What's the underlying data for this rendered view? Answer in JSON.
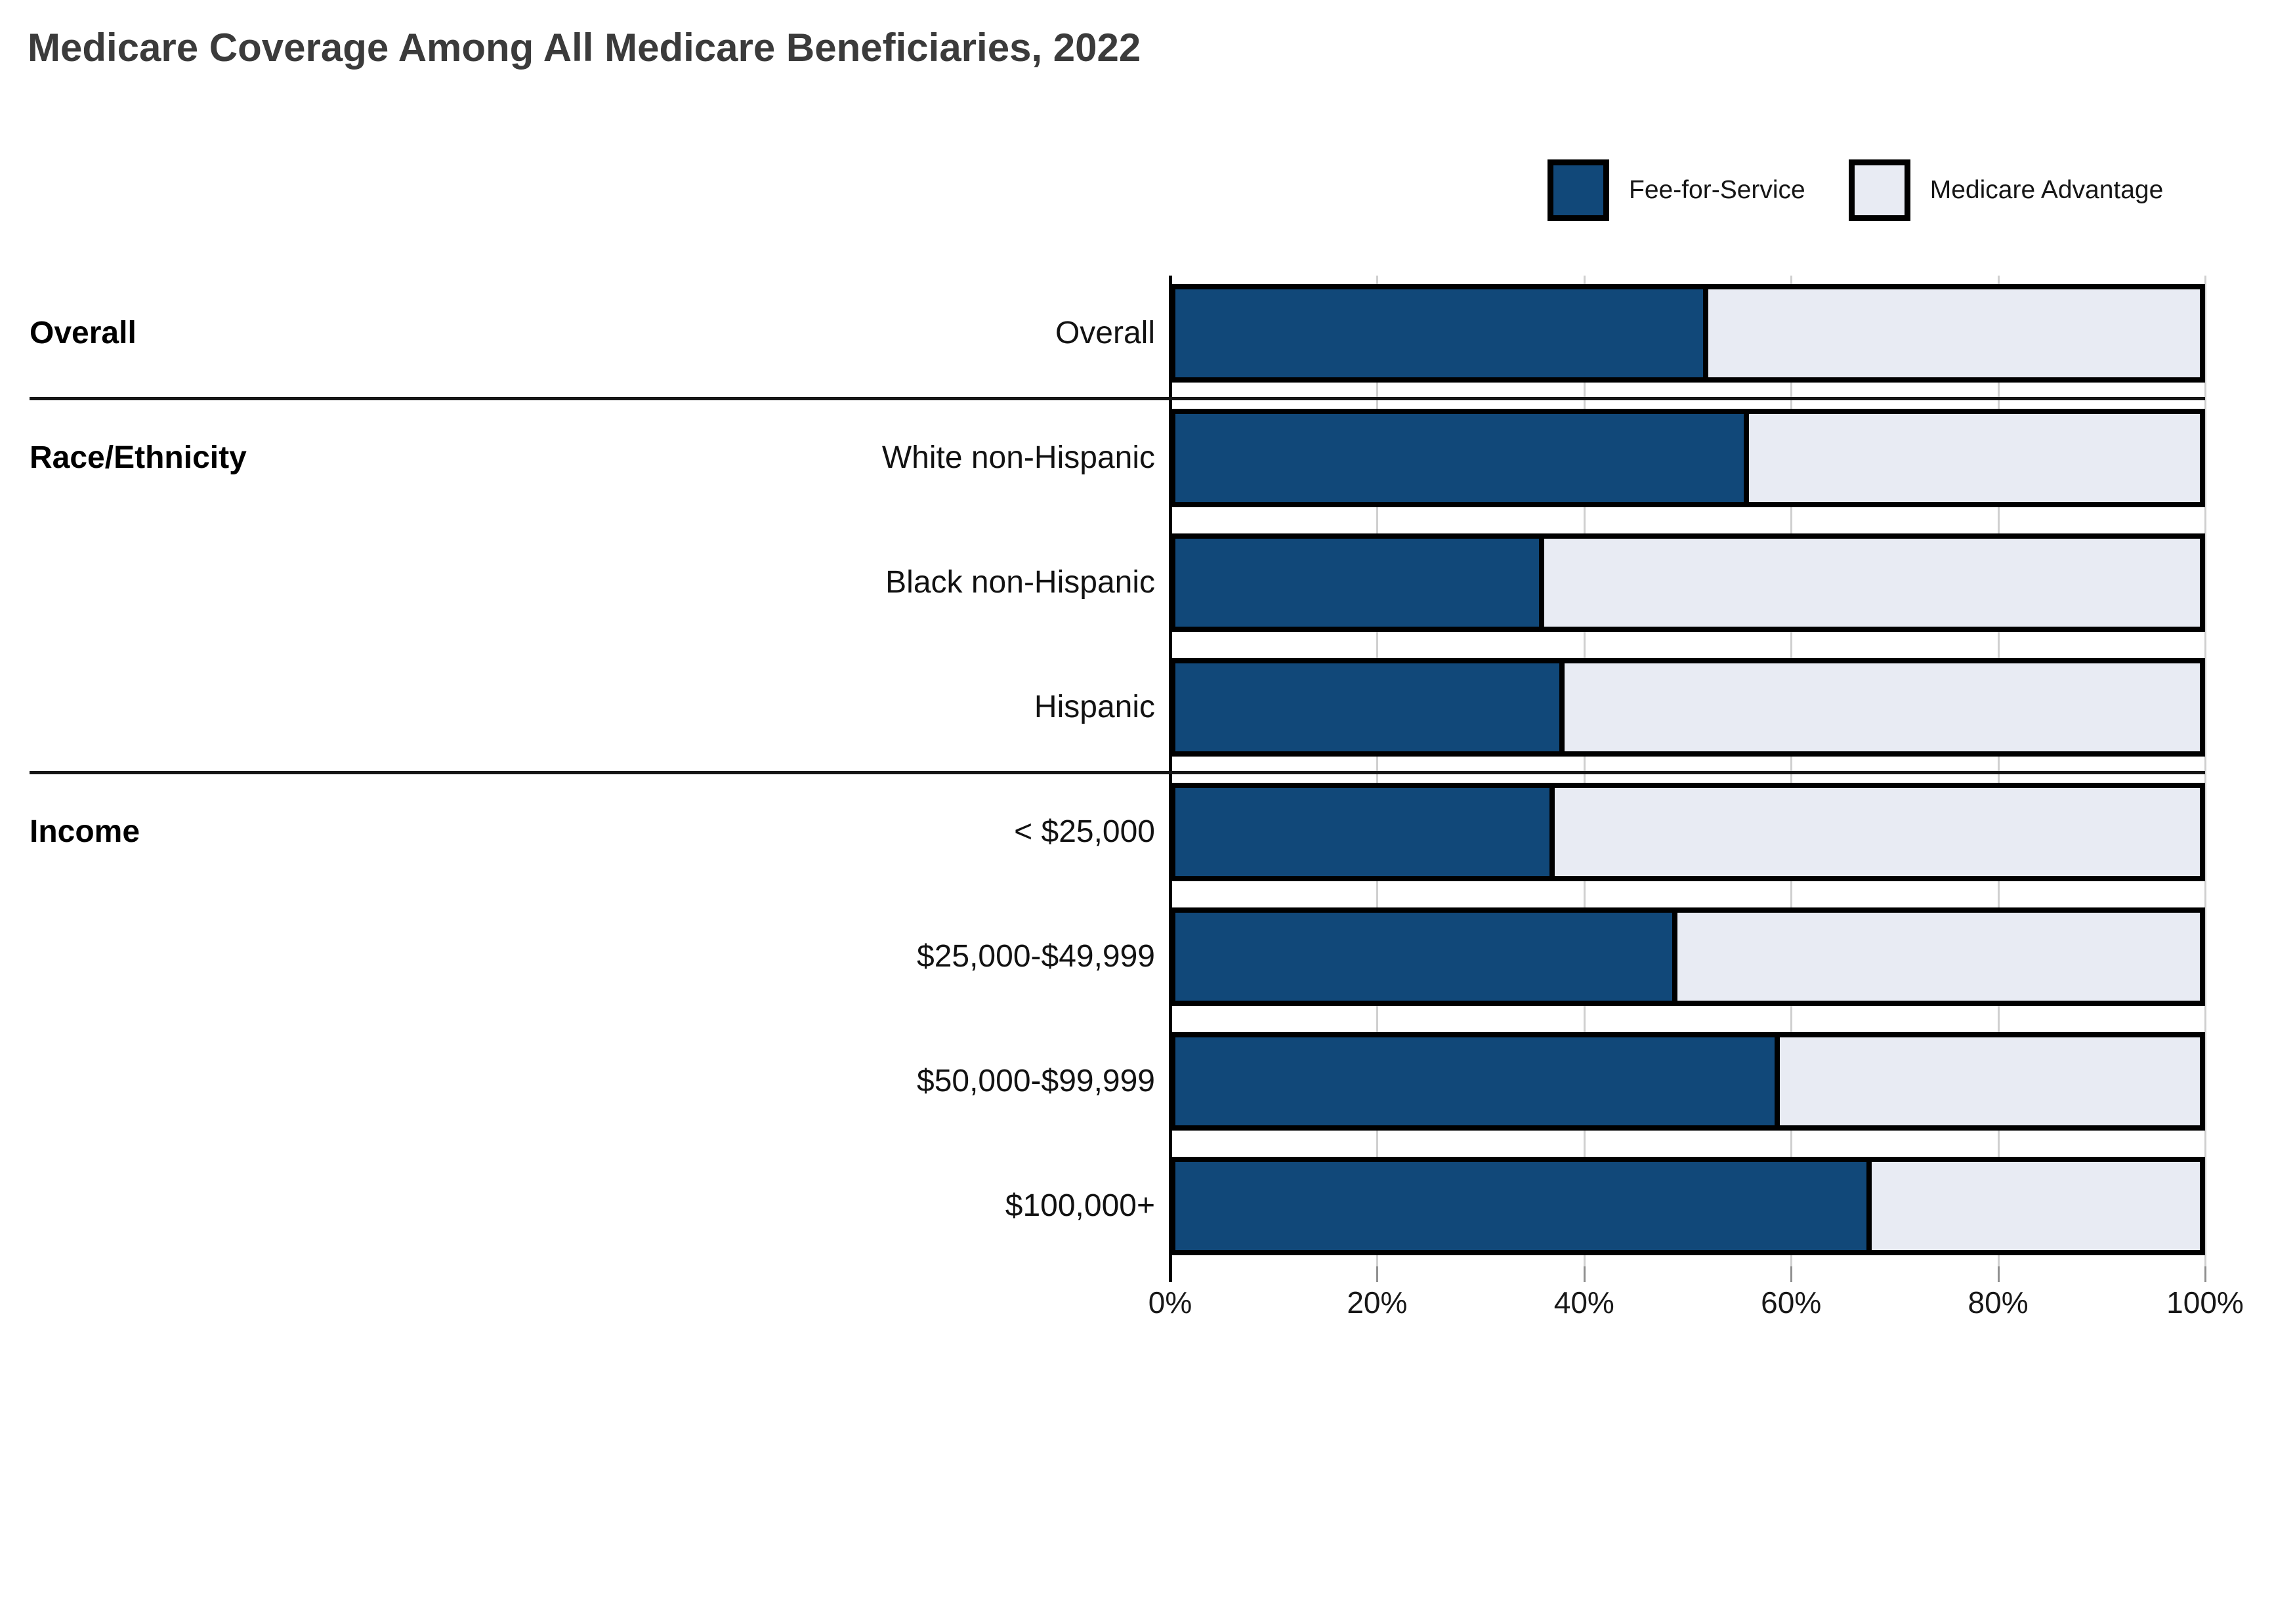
{
  "title": "Medicare Coverage Among All Medicare Beneficiaries, 2022",
  "legend": [
    {
      "label": "Fee-for-Service",
      "color": "#114879"
    },
    {
      "label": "Medicare Advantage",
      "color": "#E8EBF3"
    }
  ],
  "colors": {
    "fee_for_service": "#114879",
    "medicare_advantage": "#E8EBF3",
    "bar_border": "#000000",
    "gridline": "#CFCFCF",
    "title_text": "#3B3B3B",
    "label_text": "#121212",
    "tick_mark": "#8F8F8F"
  },
  "chart_data": {
    "type": "bar",
    "orientation": "horizontal",
    "stacked": true,
    "title": "Medicare Coverage Among All Medicare Beneficiaries, 2022",
    "xlabel": "",
    "ylabel": "",
    "xlim": [
      0,
      100
    ],
    "grid": true,
    "legend_position": "top-right",
    "x_ticks": [
      {
        "label": "0%",
        "value": 0
      },
      {
        "label": "20%",
        "value": 20
      },
      {
        "label": "40%",
        "value": 40
      },
      {
        "label": "60%",
        "value": 60
      },
      {
        "label": "80%",
        "value": 80
      },
      {
        "label": "100%",
        "value": 100
      }
    ],
    "categories": [
      "Overall",
      "White non-Hispanic",
      "Black non-Hispanic",
      "Hispanic",
      "< $25,000",
      "$25,000-$49,999",
      "$50,000-$99,999",
      "$100,000+"
    ],
    "series": [
      {
        "name": "Fee-for-Service",
        "values": [
          52,
          56,
          36,
          38,
          37,
          49,
          59,
          68
        ]
      },
      {
        "name": "Medicare Advantage",
        "values": [
          48,
          44,
          64,
          62,
          63,
          51,
          41,
          32
        ]
      }
    ],
    "groups": [
      {
        "label": "Overall",
        "rows": [
          {
            "label": "Overall",
            "fee_for_service": 52,
            "medicare_advantage": 48
          }
        ]
      },
      {
        "label": "Race/Ethnicity",
        "rows": [
          {
            "label": "White non-Hispanic",
            "fee_for_service": 56,
            "medicare_advantage": 44
          },
          {
            "label": "Black non-Hispanic",
            "fee_for_service": 36,
            "medicare_advantage": 64
          },
          {
            "label": "Hispanic",
            "fee_for_service": 38,
            "medicare_advantage": 62
          }
        ]
      },
      {
        "label": "Income",
        "rows": [
          {
            "label": "< $25,000",
            "fee_for_service": 37,
            "medicare_advantage": 63
          },
          {
            "label": "$25,000-$49,999",
            "fee_for_service": 49,
            "medicare_advantage": 51
          },
          {
            "label": "$50,000-$99,999",
            "fee_for_service": 59,
            "medicare_advantage": 41
          },
          {
            "label": "$100,000+",
            "fee_for_service": 68,
            "medicare_advantage": 32
          }
        ]
      }
    ]
  }
}
